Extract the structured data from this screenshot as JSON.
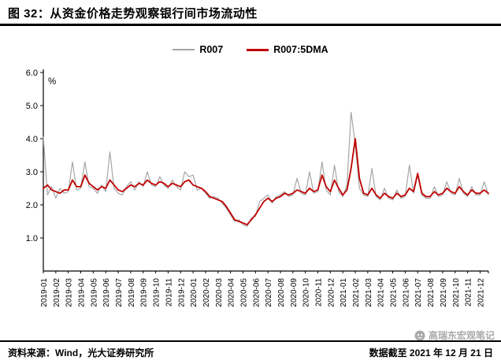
{
  "header": {
    "title": "图 32：从资金价格走势观察银行间市场流动性"
  },
  "footer": {
    "source": "资料来源：Wind，光大证券研究所",
    "data_cutoff": "数据截至 2021 年 12 月 21 日"
  },
  "watermark": {
    "text": "高瑞东宏观笔记"
  },
  "colors": {
    "series_gray": "#A6A6A6",
    "series_red": "#C00000",
    "axis_black": "#000000",
    "watermark_gray": "#AAAAAA"
  },
  "chart_data": {
    "type": "line",
    "title": "图 32：从资金价格走势观察银行间市场流动性",
    "unit_label": "%",
    "ylabel": "",
    "xlabel": "",
    "y_range": [
      0,
      6
    ],
    "y_ticks": [
      1.0,
      2.0,
      3.0,
      4.0,
      5.0,
      6.0
    ],
    "grid": false,
    "legend_position": "top-center",
    "samples_per_month": 3,
    "x_tick_labels": [
      "2019-01",
      "2019-02",
      "2019-03",
      "2019-04",
      "2019-05",
      "2019-06",
      "2019-07",
      "2019-08",
      "2019-09",
      "2019-10",
      "2019-11",
      "2019-12",
      "2020-01",
      "2020-02",
      "2020-03",
      "2020-04",
      "2020-05",
      "2020-06",
      "2020-07",
      "2020-08",
      "2020-09",
      "2020-10",
      "2020-11",
      "2020-12",
      "2021-01",
      "2021-02",
      "2021-03",
      "2021-04",
      "2021-05",
      "2021-06",
      "2021-07",
      "2021-08",
      "2021-09",
      "2021-10",
      "2021-11",
      "2021-12"
    ],
    "series": [
      {
        "name": "R007",
        "color": "#A6A6A6",
        "values": [
          4.05,
          2.3,
          2.55,
          2.2,
          2.5,
          2.35,
          2.4,
          3.3,
          2.45,
          2.5,
          3.3,
          2.55,
          2.5,
          2.35,
          2.6,
          2.4,
          3.6,
          2.5,
          2.35,
          2.3,
          2.55,
          2.7,
          2.45,
          2.7,
          2.55,
          3.0,
          2.6,
          2.55,
          2.85,
          2.6,
          2.5,
          2.75,
          2.55,
          2.45,
          3.0,
          2.85,
          2.9,
          2.45,
          2.5,
          2.35,
          2.2,
          2.25,
          2.2,
          2.05,
          1.9,
          1.7,
          1.5,
          1.55,
          1.4,
          1.35,
          1.6,
          1.65,
          2.1,
          2.2,
          2.3,
          2.05,
          2.25,
          2.3,
          2.4,
          2.25,
          2.3,
          2.8,
          2.35,
          2.3,
          3.0,
          2.35,
          2.4,
          3.3,
          2.45,
          2.3,
          3.2,
          2.4,
          2.25,
          2.6,
          4.8,
          3.8,
          2.5,
          2.3,
          2.25,
          3.1,
          2.25,
          2.15,
          2.5,
          2.2,
          2.15,
          2.45,
          2.2,
          2.25,
          3.2,
          2.35,
          2.9,
          2.3,
          2.2,
          2.2,
          2.55,
          2.25,
          2.3,
          2.7,
          2.35,
          2.3,
          2.8,
          2.35,
          2.25,
          2.55,
          2.3,
          2.3,
          2.7,
          2.3
        ]
      },
      {
        "name": "R007:5DMA",
        "color": "#C00000",
        "values": [
          2.5,
          2.6,
          2.45,
          2.4,
          2.35,
          2.45,
          2.45,
          2.75,
          2.55,
          2.55,
          2.9,
          2.65,
          2.55,
          2.45,
          2.55,
          2.5,
          2.75,
          2.6,
          2.45,
          2.4,
          2.5,
          2.6,
          2.55,
          2.65,
          2.6,
          2.75,
          2.65,
          2.6,
          2.7,
          2.65,
          2.55,
          2.65,
          2.6,
          2.55,
          2.7,
          2.75,
          2.6,
          2.55,
          2.5,
          2.4,
          2.25,
          2.2,
          2.15,
          2.1,
          1.95,
          1.75,
          1.55,
          1.5,
          1.45,
          1.4,
          1.55,
          1.7,
          1.9,
          2.1,
          2.2,
          2.1,
          2.2,
          2.25,
          2.35,
          2.3,
          2.35,
          2.45,
          2.4,
          2.35,
          2.5,
          2.4,
          2.45,
          2.9,
          2.55,
          2.4,
          2.75,
          2.5,
          2.3,
          2.45,
          3.1,
          4.0,
          2.8,
          2.35,
          2.3,
          2.5,
          2.3,
          2.2,
          2.35,
          2.25,
          2.2,
          2.35,
          2.25,
          2.3,
          2.5,
          2.4,
          2.95,
          2.35,
          2.25,
          2.25,
          2.4,
          2.3,
          2.35,
          2.5,
          2.4,
          2.35,
          2.55,
          2.4,
          2.3,
          2.45,
          2.35,
          2.35,
          2.45,
          2.35
        ]
      }
    ]
  }
}
